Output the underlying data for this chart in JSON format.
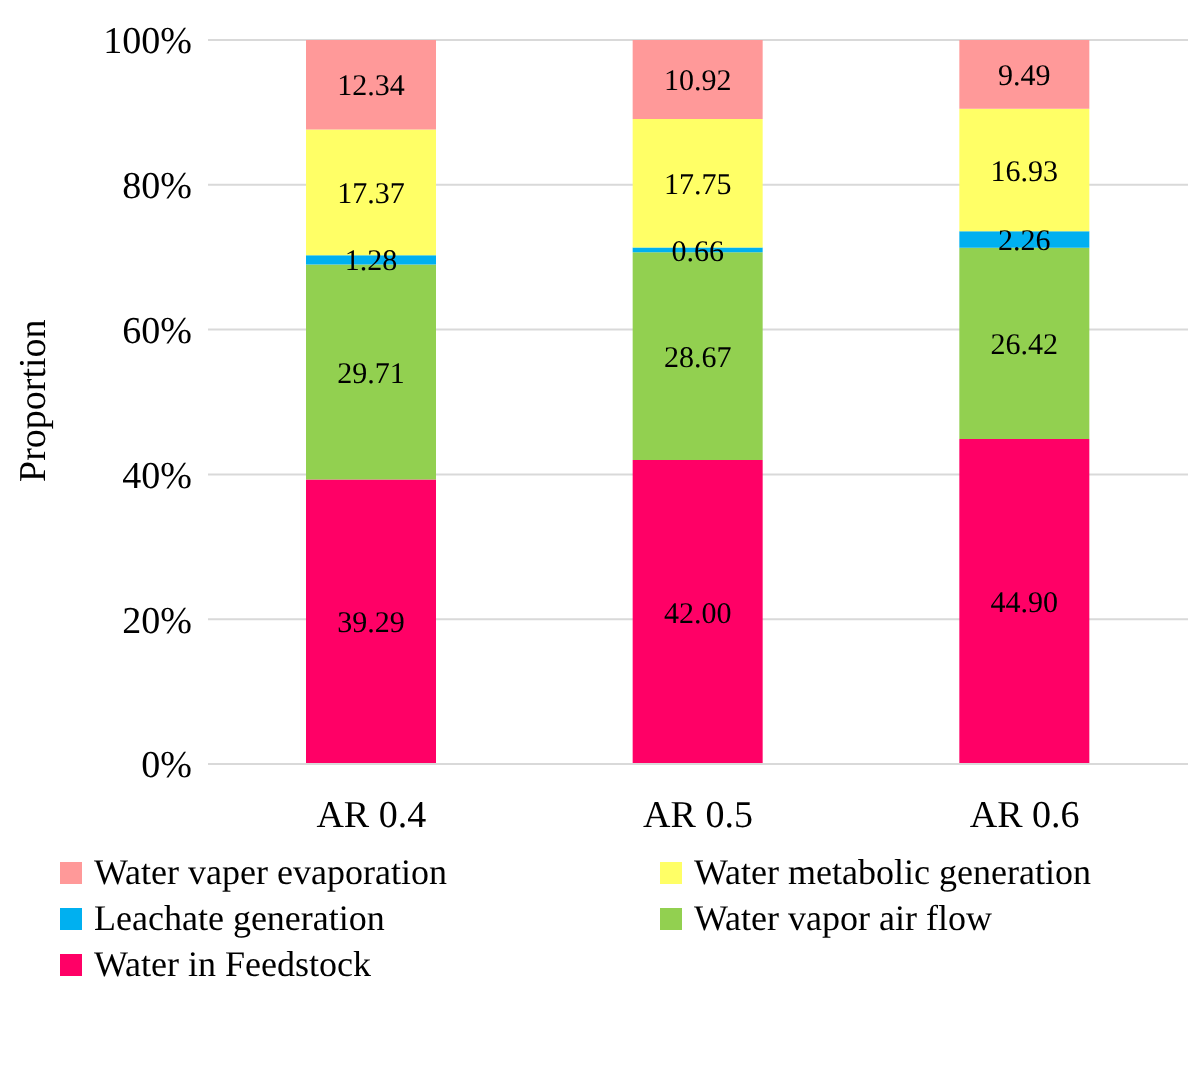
{
  "chart_data": {
    "type": "bar",
    "stacked": true,
    "ylabel": "Proportion",
    "categories": [
      "AR 0.4",
      "AR 0.5",
      "AR 0.6"
    ],
    "series": [
      {
        "name": "Water in Feedstock",
        "color": "#ff0066",
        "values": [
          39.29,
          42.0,
          44.9
        ],
        "value_labels": [
          "39.29",
          "42.00",
          "44.90"
        ]
      },
      {
        "name": "Water vapor air flow",
        "color": "#92d050",
        "values": [
          29.71,
          28.67,
          26.42
        ],
        "value_labels": [
          "29.71",
          "28.67",
          "26.42"
        ]
      },
      {
        "name": "Leachate generation",
        "color": "#00b0f0",
        "values": [
          1.28,
          0.66,
          2.26
        ],
        "value_labels": [
          "1.28",
          "0.66",
          "2.26"
        ]
      },
      {
        "name": "Water metabolic generation",
        "color": "#ffff66",
        "values": [
          17.37,
          17.75,
          16.93
        ],
        "value_labels": [
          "17.37",
          "17.75",
          "16.93"
        ]
      },
      {
        "name": "Water vaper evaporation",
        "color": "#ff9999",
        "values": [
          12.34,
          10.92,
          9.49
        ],
        "value_labels": [
          "12.34",
          "10.92",
          "9.49"
        ]
      }
    ],
    "ylim": [
      0,
      100
    ],
    "yticks": [
      {
        "value": 0,
        "label": "0%"
      },
      {
        "value": 20,
        "label": "20%"
      },
      {
        "value": 40,
        "label": "40%"
      },
      {
        "value": 60,
        "label": "60%"
      },
      {
        "value": 80,
        "label": "80%"
      },
      {
        "value": 100,
        "label": "100%"
      }
    ],
    "grid": "y",
    "legend": "bottom"
  }
}
